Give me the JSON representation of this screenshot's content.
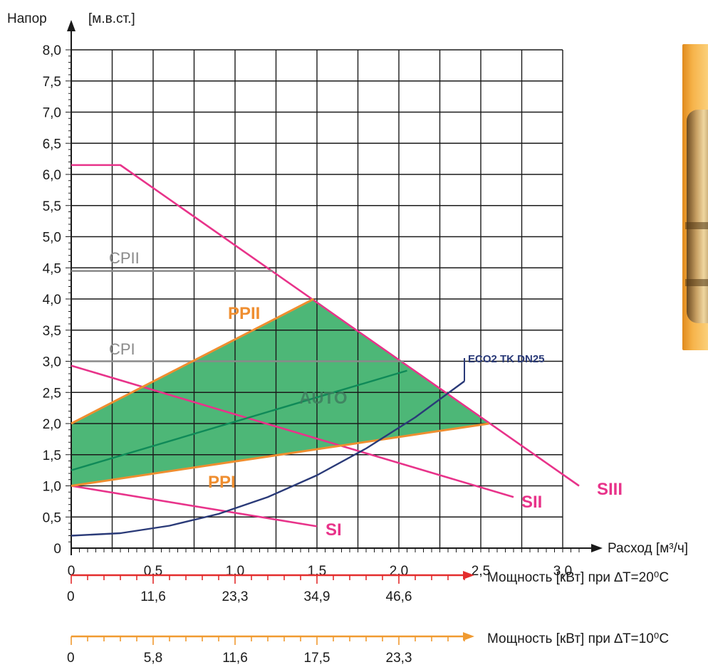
{
  "chart_data": {
    "type": "line",
    "ylabel": "Напор",
    "yunit": "[м.в.ст.]",
    "xlabel": "Расход [м³/ч]",
    "xlim": [
      0,
      3.1
    ],
    "ylim": [
      0,
      8.25
    ],
    "xticks": [
      0,
      0.5,
      1.0,
      1.5,
      2.0,
      2.5,
      3.0
    ],
    "xtick_labels": [
      "0",
      "0,5",
      "1,0",
      "1,5",
      "2,0",
      "2,5",
      "3,0"
    ],
    "yticks": [
      0,
      0.5,
      1.0,
      1.5,
      2.0,
      2.5,
      3.0,
      3.5,
      4.0,
      4.5,
      5.0,
      5.5,
      6.0,
      6.5,
      7.0,
      7.5,
      8.0
    ],
    "ytick_labels": [
      "0",
      "0,5",
      "1,0",
      "1,5",
      "2,0",
      "2,5",
      "3,0",
      "3,5",
      "4,0",
      "4,5",
      "5,0",
      "5,5",
      "6,0",
      "6,5",
      "7,0",
      "7,5",
      "8,0"
    ],
    "grid": true,
    "colors": {
      "pump_curve": "#e8338a",
      "pp_line": "#ef8e30",
      "cp_line": "#8a8a8a",
      "auto_fill": "#4db777",
      "auto_line": "#0f8a58",
      "system_curve": "#2a3a78",
      "power_axis_20": "#e32d2d",
      "power_axis_10": "#f09a30",
      "grid": "#1a1a1a"
    },
    "series": [
      {
        "name": "SI",
        "kind": "pump_curve",
        "x": [
          0,
          1.5
        ],
        "y": [
          1.0,
          0.35
        ]
      },
      {
        "name": "SII",
        "kind": "pump_curve",
        "x": [
          0,
          2.7
        ],
        "y": [
          2.93,
          0.82
        ]
      },
      {
        "name": "SIII",
        "kind": "pump_curve",
        "x": [
          0,
          0.3,
          3.1
        ],
        "y": [
          6.15,
          6.15,
          1.0
        ]
      },
      {
        "name": "CPII",
        "kind": "cp_line",
        "x": [
          0,
          1.23
        ],
        "y": [
          4.45,
          4.45
        ]
      },
      {
        "name": "CPI",
        "kind": "cp_line",
        "x": [
          0,
          2.03
        ],
        "y": [
          3.0,
          3.0
        ]
      },
      {
        "name": "PPII",
        "kind": "pp_line",
        "x": [
          0,
          1.48
        ],
        "y": [
          2.0,
          4.0
        ]
      },
      {
        "name": "PPI",
        "kind": "pp_line",
        "x": [
          0,
          2.55
        ],
        "y": [
          1.0,
          2.0
        ]
      },
      {
        "name": "AUTO",
        "kind": "auto_line",
        "x": [
          0,
          2.05
        ],
        "y": [
          1.25,
          2.85
        ]
      },
      {
        "name": "ECO2 TK DN25",
        "kind": "system_curve",
        "x": [
          0,
          0.3,
          0.6,
          0.9,
          1.2,
          1.5,
          1.8,
          2.1,
          2.4
        ],
        "y": [
          0.2,
          0.24,
          0.36,
          0.55,
          0.82,
          1.17,
          1.6,
          2.1,
          2.68
        ]
      }
    ],
    "auto_region": {
      "x": [
        0,
        1.48,
        2.55,
        0
      ],
      "y": [
        2.0,
        4.0,
        2.0,
        1.0
      ]
    },
    "annotations": {
      "SI": "SI",
      "SII": "SII",
      "SIII": "SIII",
      "CPI": "CPI",
      "CPII": "CPII",
      "PPI": "PPI",
      "PPII": "PPII",
      "AUTO": "AUTO",
      "ECO": "ECO2 TK DN25"
    },
    "power_axes": [
      {
        "label": "Мощность [кВт] при ∆T=20⁰C",
        "ticks": [
          {
            "flow": 0,
            "text": "0"
          },
          {
            "flow": 0.5,
            "text": "11,6"
          },
          {
            "flow": 1.0,
            "text": "23,3"
          },
          {
            "flow": 1.5,
            "text": "34,9"
          },
          {
            "flow": 2.0,
            "text": "46,6"
          }
        ],
        "max_flow": 2.4
      },
      {
        "label": "Мощность [кВт] при ∆T=10⁰C",
        "ticks": [
          {
            "flow": 0,
            "text": "0"
          },
          {
            "flow": 0.5,
            "text": "5,8"
          },
          {
            "flow": 1.0,
            "text": "11,6"
          },
          {
            "flow": 1.5,
            "text": "17,5"
          },
          {
            "flow": 2.0,
            "text": "23,3"
          }
        ],
        "max_flow": 2.4
      }
    ]
  }
}
